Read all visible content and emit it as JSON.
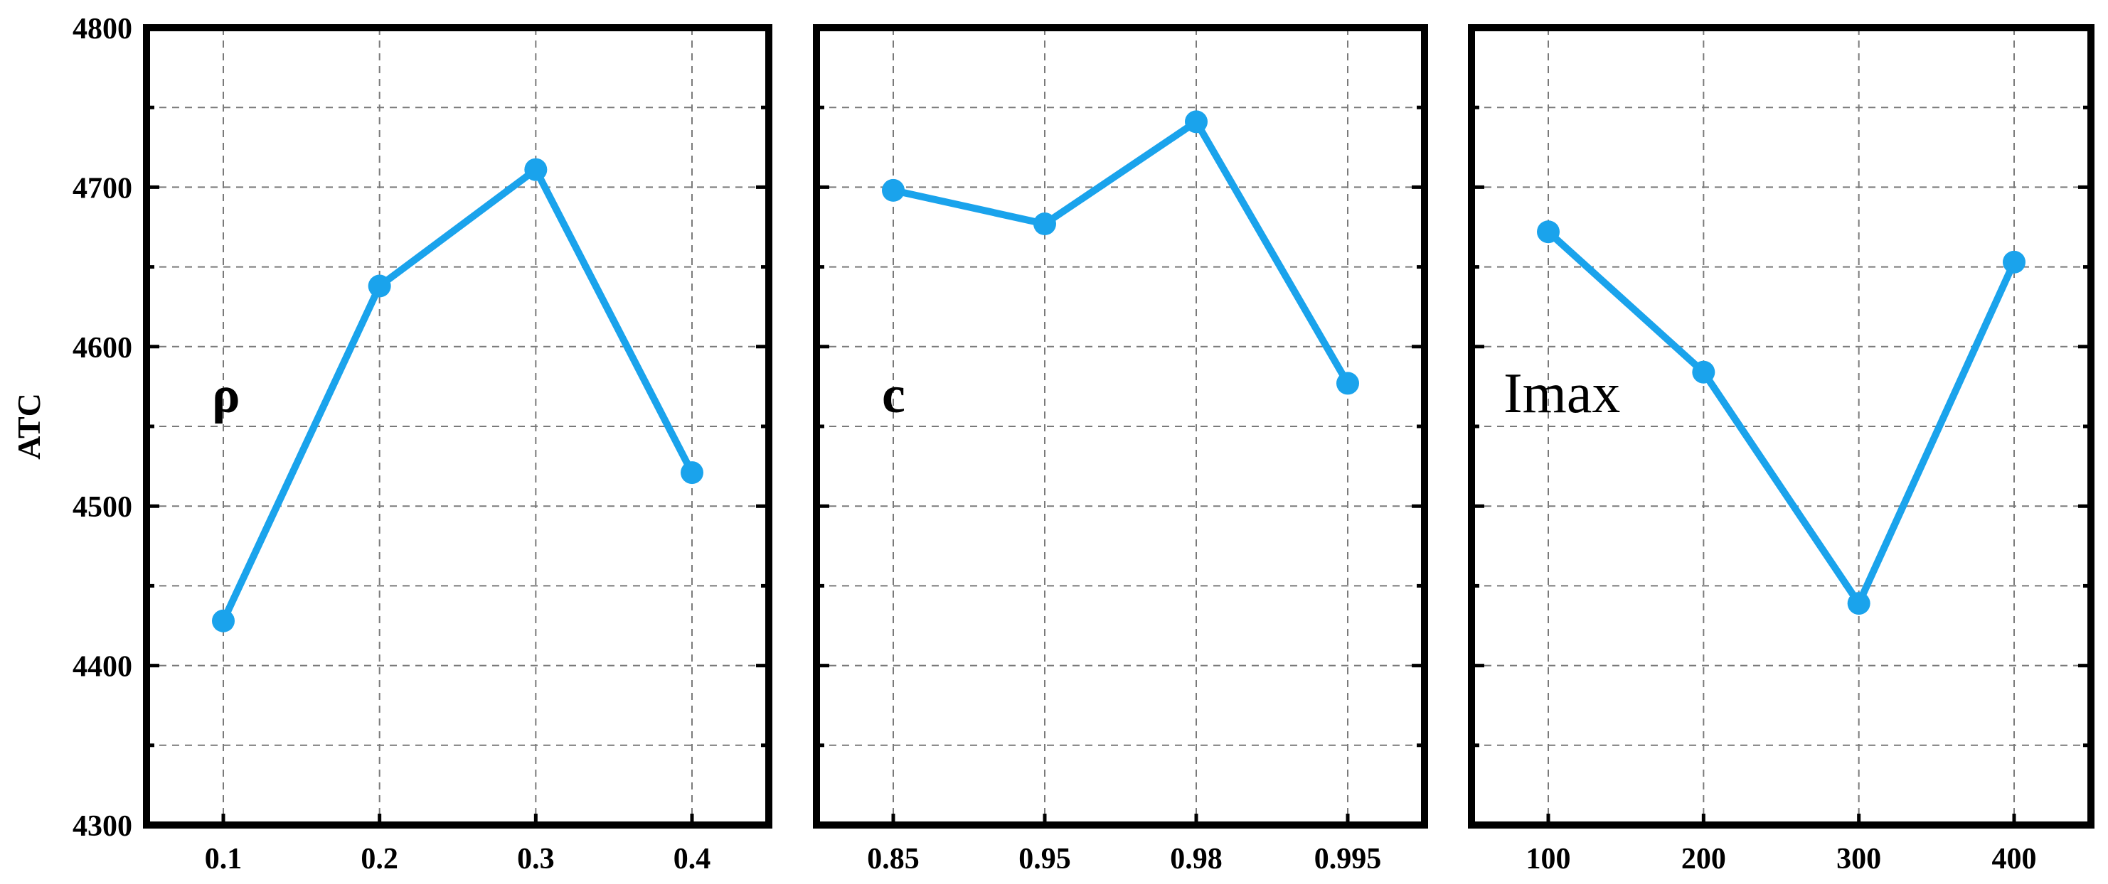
{
  "chart_data": [
    {
      "type": "line",
      "annotation": "ρ",
      "annotation_weight": "bold",
      "ylabel": "ATC",
      "ylim": [
        4300,
        4800
      ],
      "y_ticks": [
        "4300",
        "4400",
        "4500",
        "4600",
        "4700",
        "4800"
      ],
      "categories": [
        "0.1",
        "0.2",
        "0.3",
        "0.4"
      ],
      "values": [
        4428,
        4638,
        4711,
        4521
      ],
      "grid": true,
      "color": "#1aa3ec"
    },
    {
      "type": "line",
      "annotation": "c",
      "annotation_weight": "bold",
      "ylim": [
        4300,
        4800
      ],
      "categories": [
        "0.85",
        "0.95",
        "0.98",
        "0.995"
      ],
      "values": [
        4698,
        4677,
        4741,
        4577
      ],
      "grid": true,
      "color": "#1aa3ec"
    },
    {
      "type": "line",
      "annotation": "Imax",
      "annotation_weight": "normal",
      "ylim": [
        4300,
        4800
      ],
      "categories": [
        "100",
        "200",
        "300",
        "400"
      ],
      "values": [
        4672,
        4584,
        4439,
        4653
      ],
      "grid": true,
      "color": "#1aa3ec"
    }
  ]
}
